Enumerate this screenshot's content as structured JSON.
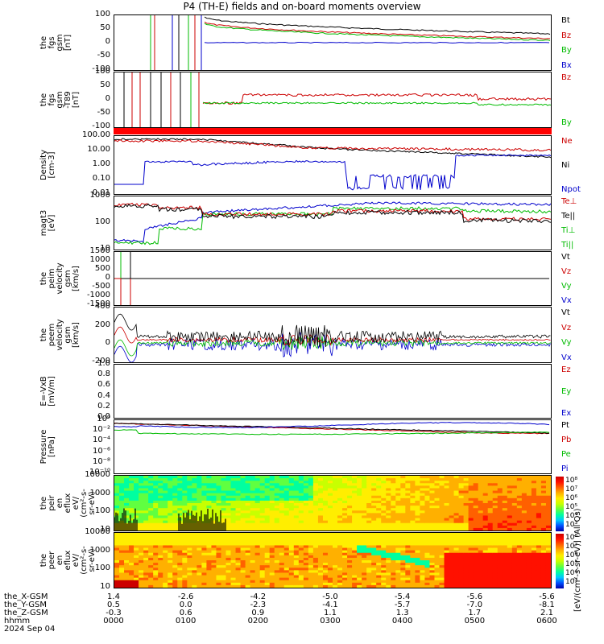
{
  "title": "P4 (TH-E) fields and on-board moments overview",
  "panels": [
    {
      "id": "fgs-gsm",
      "ylabel": "the\nfgs\ngsm\n[nT]",
      "ticks": [
        "100",
        "50",
        "0",
        "-50",
        "-100"
      ],
      "legend": [
        {
          "t": "Bt",
          "c": "#000000"
        },
        {
          "t": "Bz",
          "c": "#cc0000"
        },
        {
          "t": "By",
          "c": "#00bb00"
        },
        {
          "t": "Bx",
          "c": "#0000cc"
        }
      ]
    },
    {
      "id": "fgs-gsm-t89",
      "ylabel": "the\nfgs\ngsm\n-T89\n[nT]",
      "ticks": [
        "100",
        "50",
        "0",
        "-50",
        "-100"
      ],
      "legend": [
        {
          "t": "Bz",
          "c": "#cc0000"
        },
        {
          "t": "By",
          "c": "#00bb00"
        }
      ]
    },
    {
      "id": "density",
      "ylabel": "Density\n[cm-3]",
      "ticks": [
        "100.00",
        "10.00",
        "1.00",
        "0.10",
        "0.01"
      ],
      "legend": [
        {
          "t": "Ne",
          "c": "#cc0000"
        },
        {
          "t": "Ni",
          "c": "#000000"
        },
        {
          "t": "Npot",
          "c": "#0000cc"
        }
      ]
    },
    {
      "id": "temp",
      "ylabel": "magt3\n[eV]",
      "ticks": [
        "1000",
        "100",
        "10"
      ],
      "legend": [
        {
          "t": "Te⊥",
          "c": "#cc0000"
        },
        {
          "t": "Te||",
          "c": "#000000"
        },
        {
          "t": "Ti⊥",
          "c": "#00bb00"
        },
        {
          "t": "Ti||",
          "c": "#00bb00"
        }
      ]
    },
    {
      "id": "peim-vel",
      "ylabel": "the\npeim\nvelocity\ngsm\n[km/s]",
      "ticks": [
        "1500",
        "1000",
        "500",
        "0",
        "-500",
        "-1000",
        "-1500"
      ],
      "legend": [
        {
          "t": "Vt",
          "c": "#000000"
        },
        {
          "t": "Vz",
          "c": "#cc0000"
        },
        {
          "t": "Vy",
          "c": "#00bb00"
        },
        {
          "t": "Vx",
          "c": "#0000cc"
        }
      ]
    },
    {
      "id": "peem-vel",
      "ylabel": "the\npeem\nvelocity\ngsm\n[km/s]",
      "ticks": [
        "400",
        "200",
        "0",
        "-200"
      ],
      "legend": [
        {
          "t": "Vt",
          "c": "#000000"
        },
        {
          "t": "Vz",
          "c": "#cc0000"
        },
        {
          "t": "Vy",
          "c": "#00bb00"
        },
        {
          "t": "Vx",
          "c": "#0000cc"
        }
      ]
    },
    {
      "id": "efield",
      "ylabel": "E=-VxB\n[mV/m]",
      "ticks": [
        "1.0",
        "0.8",
        "0.6",
        "0.4",
        "0.2",
        "0.0"
      ],
      "legend": [
        {
          "t": "Ez",
          "c": "#cc0000"
        },
        {
          "t": "Ey",
          "c": "#00bb00"
        },
        {
          "t": "Ex",
          "c": "#0000cc"
        }
      ]
    },
    {
      "id": "pressure",
      "ylabel": "Pressure\n[nPa]",
      "ticks": [
        "10⁰",
        "10⁻²",
        "10⁻⁴",
        "10⁻⁶",
        "10⁻⁸",
        "10⁻¹⁰"
      ],
      "legend": [
        {
          "t": "Pt",
          "c": "#000000"
        },
        {
          "t": "Pb",
          "c": "#cc0000"
        },
        {
          "t": "Pe",
          "c": "#00bb00"
        },
        {
          "t": "Pi",
          "c": "#0000cc"
        }
      ]
    },
    {
      "id": "peir-eflux",
      "ylabel": "the\npeir\nen\neflux\neV/\n(cm²-s-\nsr-eV)",
      "ticks": [
        "10000",
        "1000",
        "100",
        "10"
      ],
      "legend": []
    },
    {
      "id": "peer-eflux",
      "ylabel": "the\npeer\nen\neflux\neV/\n(cm²-s-\nsr-eV)",
      "ticks": [
        "10000",
        "1000",
        "100",
        "10"
      ],
      "legend": []
    }
  ],
  "colorbar": {
    "title": "[eV/(cm²-s-sr-eV)] (All Qs)",
    "labels1": [
      "10⁸",
      "10⁷",
      "10⁶",
      "10⁵",
      "10⁴",
      "10³"
    ],
    "labels2": [
      "10⁸",
      "10⁷",
      "10⁶",
      "10⁵",
      "10⁴",
      "10³"
    ]
  },
  "xaxis": {
    "rows": [
      {
        "label": "the_X-GSM",
        "values": [
          "1.4",
          "-2.6",
          "-4.2",
          "-5.0",
          "-5.4",
          "-5.6",
          "-5.6"
        ]
      },
      {
        "label": "the_Y-GSM",
        "values": [
          "0.5",
          "0.0",
          "-2.3",
          "-4.1",
          "-5.7",
          "-7.0",
          "-8.1"
        ]
      },
      {
        "label": "the_Z-GSM",
        "values": [
          "-0.3",
          "0.6",
          "0.9",
          "1.1",
          "1.3",
          "1.7",
          "2.1"
        ]
      },
      {
        "label": "hhmm",
        "values": [
          "0000",
          "0100",
          "0200",
          "0300",
          "0400",
          "0500",
          "0600"
        ]
      }
    ],
    "date": "2024 Sep 04"
  },
  "chart_data": [
    {
      "type": "line",
      "title": "P4 (TH-E) fields and on-board moments overview",
      "ylabel": "the fgs gsm [nT]",
      "ylim": [
        -100,
        100
      ],
      "x": [
        "0000",
        "0100",
        "0200",
        "0300",
        "0400",
        "0500",
        "0600"
      ],
      "series": [
        {
          "name": "Bt",
          "values": [
            null,
            85,
            65,
            50,
            40,
            35,
            30
          ]
        },
        {
          "name": "Bz",
          "values": [
            null,
            75,
            55,
            40,
            30,
            25,
            20
          ]
        },
        {
          "name": "By",
          "values": [
            null,
            70,
            50,
            35,
            25,
            20,
            18
          ]
        },
        {
          "name": "Bx",
          "values": [
            null,
            5,
            3,
            2,
            2,
            1,
            1
          ]
        }
      ]
    },
    {
      "type": "line",
      "ylabel": "the fgs gsm -T89 [nT]",
      "ylim": [
        -120,
        120
      ],
      "x": [
        "0000",
        "0100",
        "0200",
        "0300",
        "0400",
        "0500",
        "0600"
      ],
      "series": [
        {
          "name": "Bz",
          "values": [
            null,
            0,
            10,
            10,
            10,
            5,
            5
          ]
        },
        {
          "name": "By",
          "values": [
            null,
            -10,
            -5,
            -2,
            -3,
            -5,
            -5
          ]
        }
      ]
    },
    {
      "type": "line",
      "ylabel": "Density [cm-3]",
      "log": true,
      "ylim": [
        0.005,
        200
      ],
      "x": [
        "0000",
        "0100",
        "0200",
        "0300",
        "0400",
        "0500",
        "0600"
      ],
      "series": [
        {
          "name": "Ne",
          "values": [
            30,
            100,
            40,
            3,
            4,
            6,
            5
          ]
        },
        {
          "name": "Ni",
          "values": [
            30,
            100,
            60,
            3,
            2,
            3,
            2
          ]
        },
        {
          "name": "Npot",
          "values": [
            null,
            0.5,
            1.0,
            1.0,
            0.02,
            2,
            2
          ]
        }
      ]
    },
    {
      "type": "line",
      "ylabel": "magt3 [eV]",
      "log": true,
      "ylim": [
        5,
        3000
      ],
      "x": [
        "0000",
        "0100",
        "0200",
        "0300",
        "0400",
        "0500",
        "0600"
      ],
      "series": [
        {
          "name": "Te⊥",
          "values": [
            1000,
            1000,
            300,
            250,
            600,
            300,
            300
          ]
        },
        {
          "name": "Te||",
          "values": [
            1000,
            100,
            300,
            200,
            600,
            250,
            250
          ]
        },
        {
          "name": "Ti⊥",
          "values": [
            20,
            80,
            250,
            500,
            2500,
            2000,
            2000
          ]
        },
        {
          "name": "Ti||",
          "values": [
            20,
            80,
            250,
            400,
            800,
            800,
            800
          ]
        }
      ]
    },
    {
      "type": "line",
      "ylabel": "the peim velocity gsm [km/s]",
      "ylim": [
        -1500,
        1500
      ],
      "x": [
        "0000",
        "0100",
        "0200",
        "0300",
        "0400",
        "0500",
        "0600"
      ],
      "series": [
        {
          "name": "Vt",
          "values": [
            0,
            0,
            0,
            0,
            0,
            0,
            0
          ]
        }
      ]
    },
    {
      "type": "line",
      "ylabel": "the peem velocity gsm [km/s]",
      "ylim": [
        -300,
        500
      ],
      "x": [
        "0000",
        "0100",
        "0200",
        "0300",
        "0400",
        "0500",
        "0600"
      ],
      "series": [
        {
          "name": "Vt",
          "values": [
            100,
            50,
            60,
            80,
            40,
            50,
            20
          ]
        },
        {
          "name": "Vz",
          "values": [
            200,
            40,
            20,
            30,
            30,
            40,
            10
          ]
        },
        {
          "name": "Vy",
          "values": [
            -100,
            20,
            10,
            10,
            20,
            20,
            10
          ]
        },
        {
          "name": "Vx",
          "values": [
            -100,
            0,
            -20,
            -20,
            -10,
            0,
            0
          ]
        }
      ]
    },
    {
      "type": "line",
      "ylabel": "E=-VxB [mV/m]",
      "ylim": [
        0,
        1
      ],
      "series": [
        {
          "name": "Ez",
          "values": []
        },
        {
          "name": "Ey",
          "values": []
        },
        {
          "name": "Ex",
          "values": []
        }
      ]
    },
    {
      "type": "line",
      "ylabel": "Pressure [nPa]",
      "log": true,
      "ylim": [
        1e-10,
        10
      ],
      "x": [
        "0000",
        "0100",
        "0200",
        "0300",
        "0400",
        "0500",
        "0600"
      ],
      "series": [
        {
          "name": "Pt",
          "values": [
            2,
            1,
            0.6,
            0.5,
            0.4,
            0.3,
            0.3
          ]
        },
        {
          "name": "Pb",
          "values": [
            2,
            1,
            0.6,
            0.5,
            0.4,
            0.3,
            0.3
          ]
        },
        {
          "name": "Pe",
          "values": [
            0.5,
            0.1,
            0.1,
            0.1,
            0.1,
            0.1,
            0.1
          ]
        },
        {
          "name": "Pi",
          "values": [
            2,
            1,
            1,
            1,
            0.8,
            0.6,
            0.5
          ]
        }
      ]
    },
    {
      "type": "heatmap",
      "ylabel": "the peir en eflux eV/(cm²-s-sr-eV)",
      "log": true,
      "ylim": [
        8,
        20000
      ]
    },
    {
      "type": "heatmap",
      "ylabel": "the peer en eflux eV/(cm²-s-sr-eV)",
      "log": true,
      "ylim": [
        8,
        20000
      ]
    }
  ]
}
